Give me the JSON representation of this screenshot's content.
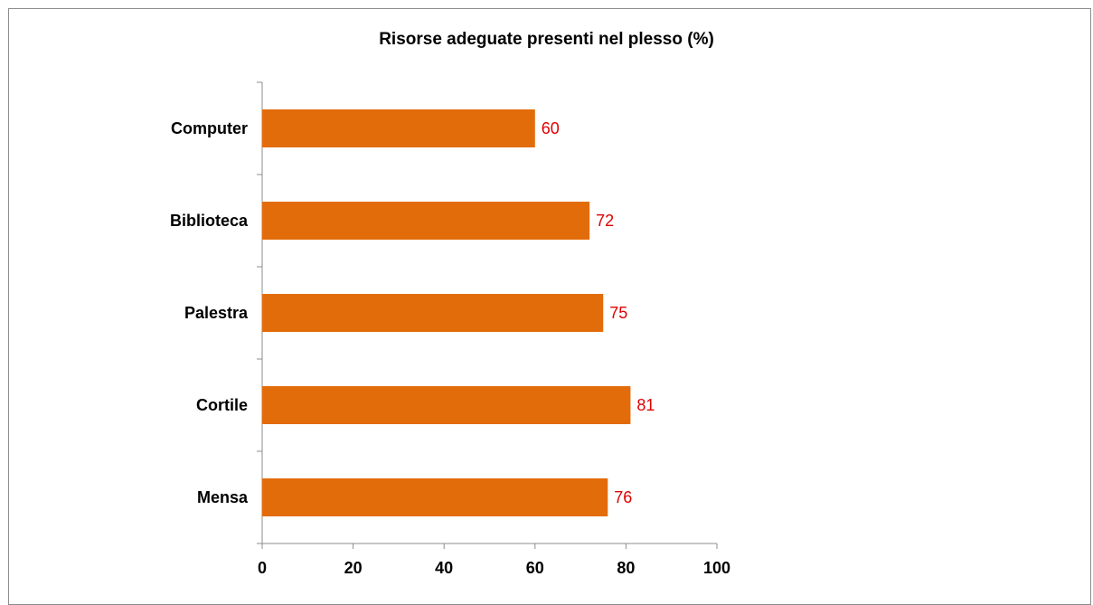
{
  "chart_data": {
    "type": "bar",
    "orientation": "horizontal",
    "title": "Risorse adeguate presenti nel plesso  (%)",
    "categories": [
      "Computer",
      "Biblioteca",
      "Palestra",
      "Cortile",
      "Mensa"
    ],
    "values": [
      60,
      72,
      75,
      81,
      76
    ],
    "data_labels": [
      "60",
      "72",
      "75",
      "81",
      "76"
    ],
    "xlabel": "",
    "ylabel": "",
    "xlim": [
      0,
      100
    ],
    "x_ticks": [
      "0",
      "20",
      "40",
      "60",
      "80",
      "100"
    ],
    "grid": false,
    "legend": "none",
    "bar_color": "#e36c0a",
    "label_color": "#e00000"
  }
}
